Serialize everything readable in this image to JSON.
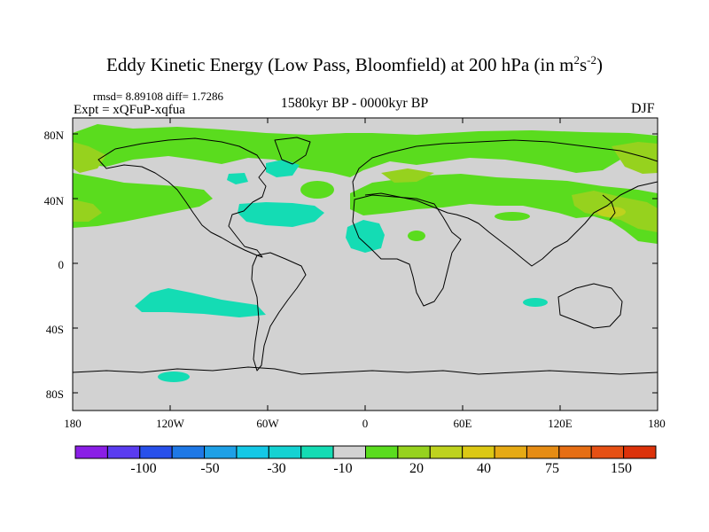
{
  "title": {
    "main": "Eddy Kinetic Energy (Low Pass, Bloomfield) at 200 hPa (in m",
    "exp1": "2",
    "mid": "s",
    "exp2": "-2",
    "close": ")"
  },
  "stats": "rmsd= 8.89108 diff= 1.7286",
  "experiment": "Expt = xQFuP-xqfua",
  "period": "1580kyr BP - 0000kyr BP",
  "season": "DJF",
  "axes": {
    "lat_labels": [
      "80N",
      "40N",
      "0",
      "40S",
      "80S"
    ],
    "lon_labels": [
      "180",
      "120W",
      "60W",
      "0",
      "60E",
      "120E",
      "180"
    ]
  },
  "colorbar": {
    "labels": [
      "-100",
      "-50",
      "-30",
      "-10",
      "20",
      "40",
      "75",
      "150"
    ],
    "colors": [
      "#8a1ee6",
      "#5a3cf0",
      "#2850eb",
      "#1e78e6",
      "#1ea0e6",
      "#14c8e6",
      "#14d2d2",
      "#14dcb4",
      "#d2d2d2",
      "#5adc1e",
      "#96d21e",
      "#bed21e",
      "#dcc814",
      "#e6aa14",
      "#e68c14",
      "#e66e14",
      "#e65014",
      "#dc320a"
    ]
  },
  "map_colors": {
    "ocean_land": "#d2d2d2",
    "positive_fill": "#5adc1e",
    "strong_positive_fill": "#96d21e",
    "peak_positive_fill": "#bed21e",
    "negative_fill": "#14dcb4",
    "coast": "#000000"
  }
}
